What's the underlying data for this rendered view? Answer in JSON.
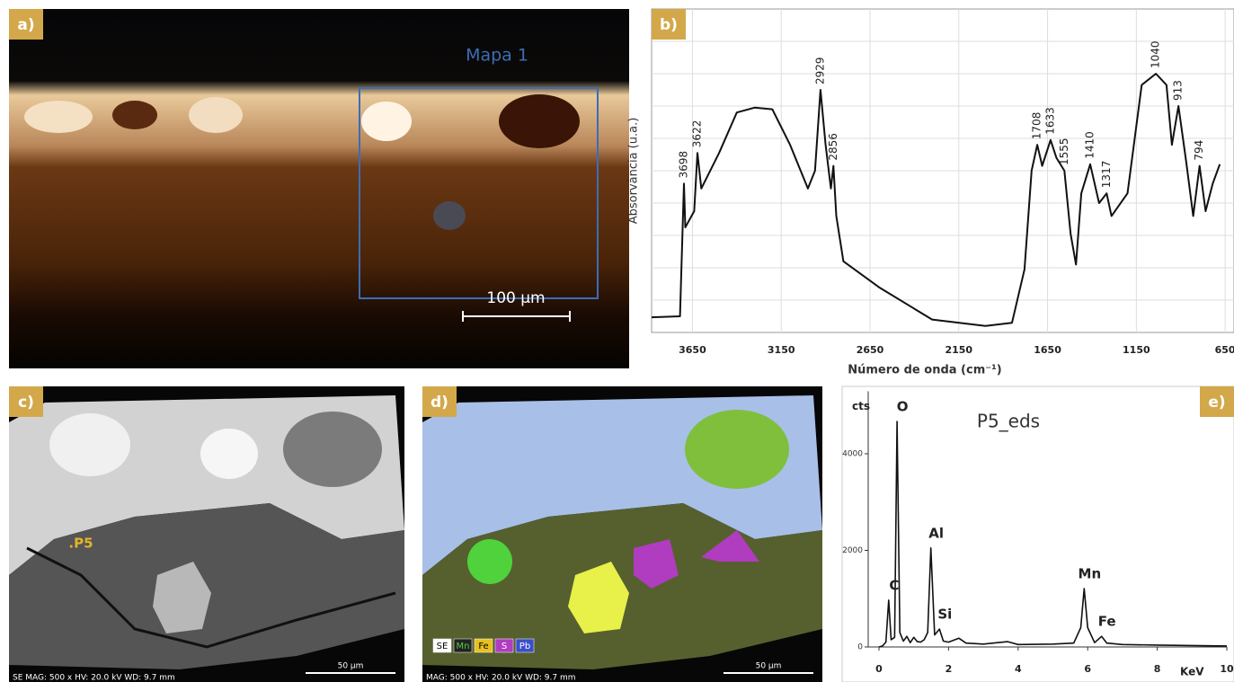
{
  "panel_labels": [
    "a)",
    "b)",
    "c)",
    "d)",
    "e)"
  ],
  "panels": {
    "a": {
      "map_label": "Mapa 1",
      "scale_bar": "100 µm"
    },
    "c": {
      "point_label": ".P5",
      "info": "SE  MAG: 500 x  HV: 20.0 kV  WD: 9.7 mm",
      "scale_bar": "50 µm"
    },
    "d": {
      "legend": [
        "SE",
        "Mn",
        "Fe",
        "S",
        "Pb"
      ],
      "info": "MAG: 500 x  HV: 20.0 kV  WD: 9.7 mm",
      "scale_bar": "50 µm"
    }
  },
  "chart_data": [
    {
      "type": "line",
      "xlabel": "Número de onda (cm⁻¹)",
      "ylabel": "Absorvância (u.a.)",
      "color": "#111111",
      "grid": true,
      "xlim": [
        3880,
        600
      ],
      "ylim": [
        0,
        10
      ],
      "xticks": [
        3650,
        3150,
        2650,
        2150,
        1650,
        1150,
        650
      ],
      "x": [
        3880,
        3720,
        3705,
        3698,
        3690,
        3640,
        3622,
        3600,
        3500,
        3400,
        3300,
        3200,
        3100,
        3000,
        2960,
        2929,
        2900,
        2870,
        2856,
        2840,
        2800,
        2600,
        2300,
        2000,
        1850,
        1780,
        1740,
        1708,
        1680,
        1633,
        1600,
        1555,
        1520,
        1490,
        1460,
        1410,
        1360,
        1317,
        1290,
        1200,
        1120,
        1040,
        980,
        950,
        913,
        870,
        830,
        794,
        760,
        720,
        680
      ],
      "values": [
        0.47,
        0.5,
        3.3,
        4.6,
        3.25,
        3.75,
        5.55,
        4.45,
        5.55,
        6.8,
        6.95,
        6.9,
        5.8,
        4.45,
        5,
        7.5,
        5.8,
        4.45,
        5.15,
        3.6,
        2.2,
        1.4,
        0.4,
        0.2,
        0.3,
        1.95,
        5,
        5.8,
        5.15,
        5.95,
        5.4,
        5,
        3.05,
        2.1,
        4.3,
        5.2,
        4,
        4.3,
        3.6,
        4.3,
        7.65,
        8,
        7.65,
        5.8,
        7,
        5.3,
        3.6,
        5.15,
        3.75,
        4.6,
        5.2
      ],
      "peaks": [
        3698,
        3622,
        2929,
        2856,
        1708,
        1633,
        1555,
        1410,
        1317,
        1040,
        913,
        794
      ]
    },
    {
      "type": "line",
      "title": "P5_eds",
      "ylabel": "cts",
      "xlabel": "KeV",
      "color": "#111111",
      "xlim": [
        0,
        10
      ],
      "ylim": [
        0,
        5200
      ],
      "xticks": [
        0,
        2,
        4,
        6,
        8,
        10
      ],
      "yticks": [
        0,
        2000,
        4000
      ],
      "x": [
        0,
        0.1,
        0.2,
        0.28,
        0.35,
        0.45,
        0.52,
        0.6,
        0.7,
        0.8,
        0.9,
        1.0,
        1.1,
        1.2,
        1.3,
        1.4,
        1.49,
        1.6,
        1.74,
        1.85,
        2.0,
        2.3,
        2.5,
        3.0,
        3.7,
        4.0,
        5.0,
        5.6,
        5.8,
        5.9,
        6.0,
        6.2,
        6.4,
        6.55,
        7.0,
        8.0,
        9.0,
        10
      ],
      "values": [
        0,
        20,
        100,
        970,
        150,
        200,
        4670,
        300,
        120,
        220,
        90,
        200,
        110,
        100,
        150,
        300,
        2050,
        250,
        370,
        120,
        100,
        180,
        80,
        60,
        110,
        50,
        60,
        80,
        400,
        1210,
        400,
        90,
        220,
        80,
        50,
        40,
        30,
        20
      ],
      "peak_labels": [
        {
          "label": "C",
          "x": 0.28
        },
        {
          "label": "O",
          "x": 0.52
        },
        {
          "label": "Al",
          "x": 1.49
        },
        {
          "label": "Si",
          "x": 1.74
        },
        {
          "label": "Mn",
          "x": 5.9
        },
        {
          "label": "Fe",
          "x": 6.4
        }
      ]
    }
  ]
}
